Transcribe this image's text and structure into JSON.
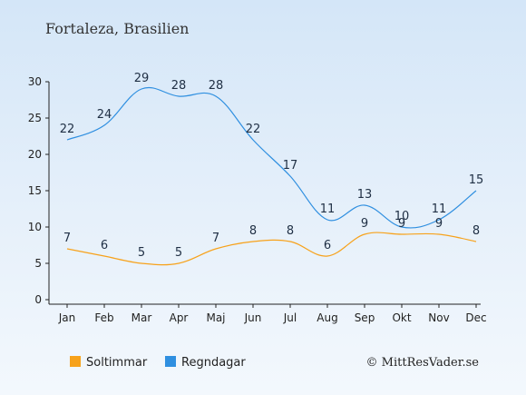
{
  "chart_data": {
    "type": "line",
    "title": "Fortaleza, Brasilien",
    "categories": [
      "Jan",
      "Feb",
      "Mar",
      "Apr",
      "Maj",
      "Jun",
      "Jul",
      "Aug",
      "Sep",
      "Okt",
      "Nov",
      "Dec"
    ],
    "ylim": [
      0,
      30
    ],
    "yticks": [
      0,
      5,
      10,
      15,
      20,
      25,
      30
    ],
    "grid": false,
    "legend_position": "bottom-left",
    "series": [
      {
        "name": "Soltimmar",
        "color": "#f7a21b",
        "values": [
          7,
          6,
          5,
          5,
          7,
          8,
          8,
          6,
          9,
          9,
          9,
          8
        ]
      },
      {
        "name": "Regndagar",
        "color": "#2f8fe0",
        "values": [
          22,
          24,
          29,
          28,
          28,
          22,
          17,
          11,
          13,
          10,
          11,
          15
        ]
      }
    ]
  },
  "credit": "© MittResVader.se"
}
